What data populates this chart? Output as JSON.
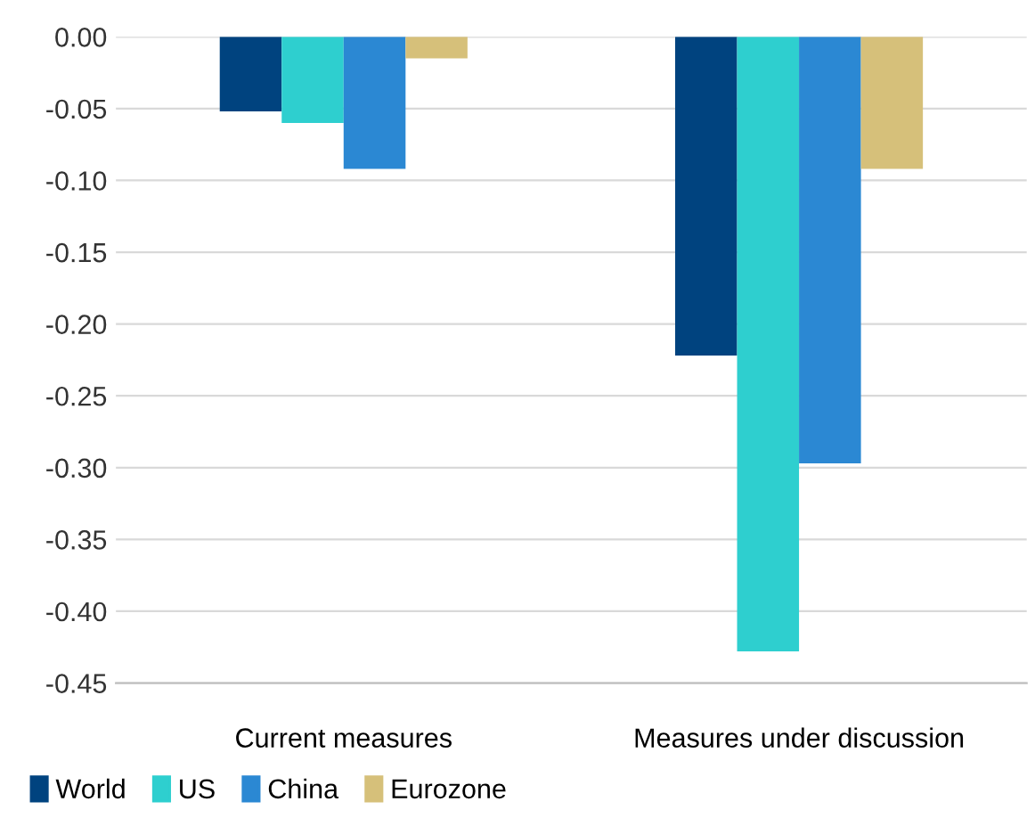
{
  "chart_data": {
    "type": "bar",
    "categories": [
      "Current measures",
      "Measures under discussion"
    ],
    "series": [
      {
        "name": "World",
        "color": "#00437f",
        "values": [
          -0.052,
          -0.222
        ]
      },
      {
        "name": "US",
        "color": "#2ecfcf",
        "values": [
          -0.06,
          -0.428
        ]
      },
      {
        "name": "China",
        "color": "#2b88d3",
        "values": [
          -0.092,
          -0.297
        ]
      },
      {
        "name": "Eurozone",
        "color": "#d6c07a",
        "values": [
          -0.015,
          -0.092
        ]
      }
    ],
    "ylim": [
      -0.45,
      0.0
    ],
    "yticks": [
      {
        "value": 0.0,
        "label": "0.00"
      },
      {
        "value": -0.05,
        "label": "-0.05"
      },
      {
        "value": -0.1,
        "label": "-0.10"
      },
      {
        "value": -0.15,
        "label": "-0.15"
      },
      {
        "value": -0.2,
        "label": "-0.20"
      },
      {
        "value": -0.25,
        "label": "-0.25"
      },
      {
        "value": -0.3,
        "label": "-0.30"
      },
      {
        "value": -0.35,
        "label": "-0.35"
      },
      {
        "value": -0.4,
        "label": "-0.40"
      },
      {
        "value": -0.45,
        "label": "-0.45"
      }
    ],
    "grid": "y",
    "legend": "bottom left"
  }
}
